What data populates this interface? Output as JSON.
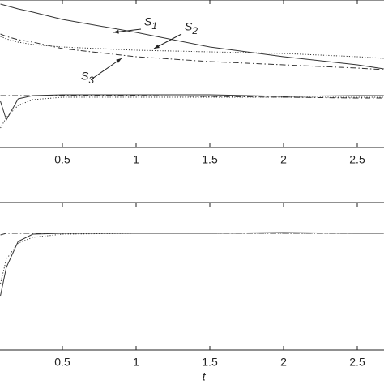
{
  "chart_data": [
    {
      "type": "line",
      "x": [
        0.08,
        0.12,
        0.2,
        0.3,
        0.5,
        1,
        1.5,
        2,
        2.5,
        2.68
      ],
      "xlim": [
        0,
        2.7
      ],
      "xticks": [
        0.5,
        1,
        1.5,
        2,
        2.5
      ],
      "ylim": [
        0,
        182
      ],
      "series": [
        {
          "name": "S1",
          "color": "#333333",
          "dash": "solid",
          "values": [
            177,
            175,
            171,
            167,
            158,
            142,
            124,
            112,
            102,
            97
          ]
        },
        {
          "name": "S2",
          "color": "#333333",
          "dash": "dotted",
          "values": [
            137,
            134,
            130,
            127,
            124,
            120,
            118,
            116,
            112,
            110
          ]
        },
        {
          "name": "S3",
          "color": "#333333",
          "dash": "dashdot",
          "values": [
            140,
            137,
            133,
            130,
            122,
            112,
            106,
            102,
            98,
            96
          ]
        },
        {
          "color": "#333333",
          "dash": "solid",
          "values": [
            57,
            34,
            60,
            64,
            65,
            65,
            65,
            63,
            64,
            64
          ]
        },
        {
          "color": "#333333",
          "dash": "dashdot",
          "values": [
            64,
            64,
            64,
            64,
            64,
            64,
            63,
            62,
            61,
            61
          ]
        },
        {
          "color": "#333333",
          "dash": "dotted",
          "values": [
            24,
            37,
            52,
            59,
            62,
            62,
            62,
            62,
            62,
            62
          ]
        }
      ]
    },
    {
      "type": "line",
      "x": [
        0.08,
        0.12,
        0.2,
        0.3,
        0.5,
        1,
        1.5,
        2,
        2.5,
        2.68
      ],
      "xlim": [
        0,
        2.7
      ],
      "xticks": [
        0.5,
        1,
        1.5,
        2,
        2.5
      ],
      "ylim": [
        0,
        182
      ],
      "xlabel": "t",
      "series": [
        {
          "color": "#333333",
          "dash": "solid",
          "values": [
            67,
            102,
            134,
            143,
            144,
            144,
            144,
            145,
            144,
            144
          ]
        },
        {
          "color": "#333333",
          "dash": "dashdot",
          "values": [
            142,
            144,
            144,
            144,
            144,
            144,
            144,
            144,
            144,
            144
          ]
        },
        {
          "color": "#333333",
          "dash": "dotted",
          "values": [
            82,
            112,
            132,
            139,
            143,
            144,
            144,
            144,
            144,
            144
          ]
        }
      ]
    }
  ]
}
